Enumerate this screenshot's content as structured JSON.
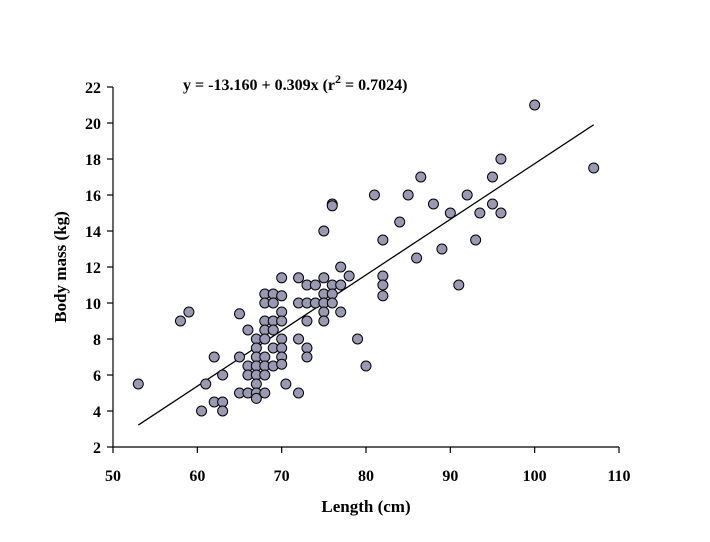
{
  "chart_data": {
    "type": "scatter",
    "title": "",
    "annotation": {
      "prefix": "y = -13.160 + 0.309x  (r",
      "superscript": "2",
      "suffix": " = 0.7024)"
    },
    "xlabel": "Length (cm)",
    "ylabel": "Body mass (kg)",
    "xlim": [
      50,
      110
    ],
    "ylim": [
      2,
      22
    ],
    "xticks": [
      50,
      60,
      70,
      80,
      90,
      100,
      110
    ],
    "yticks": [
      2,
      4,
      6,
      8,
      10,
      12,
      14,
      16,
      18,
      20,
      22
    ],
    "grid": false,
    "marker_fill": "#9999b3",
    "marker_edge": "#000000",
    "regression": {
      "intercept": -13.16,
      "slope": 0.309,
      "x_range": [
        53,
        107
      ],
      "r2": 0.7024
    },
    "points": [
      [
        53,
        5.5
      ],
      [
        58,
        9
      ],
      [
        59,
        9.5
      ],
      [
        60.5,
        4
      ],
      [
        61,
        5.5
      ],
      [
        62,
        7
      ],
      [
        62,
        4.5
      ],
      [
        63,
        6
      ],
      [
        63,
        4.5
      ],
      [
        63,
        4
      ],
      [
        65,
        9.4
      ],
      [
        65,
        7
      ],
      [
        65,
        5
      ],
      [
        66,
        8.5
      ],
      [
        66,
        6.5
      ],
      [
        66,
        6
      ],
      [
        66,
        5
      ],
      [
        67,
        8
      ],
      [
        67,
        7.5
      ],
      [
        67,
        7
      ],
      [
        67,
        6.5
      ],
      [
        67,
        6
      ],
      [
        67,
        5.5
      ],
      [
        67,
        5
      ],
      [
        67,
        4.7
      ],
      [
        68,
        10.5
      ],
      [
        68,
        10
      ],
      [
        68,
        9
      ],
      [
        68,
        8.5
      ],
      [
        68,
        8
      ],
      [
        68,
        7
      ],
      [
        68,
        6.5
      ],
      [
        68,
        6
      ],
      [
        68,
        5
      ],
      [
        69,
        10.5
      ],
      [
        69,
        10
      ],
      [
        69,
        9
      ],
      [
        69,
        8.5
      ],
      [
        69,
        7.5
      ],
      [
        69,
        6.5
      ],
      [
        70,
        11.4
      ],
      [
        70,
        10.4
      ],
      [
        70,
        9.5
      ],
      [
        70,
        9
      ],
      [
        70,
        8
      ],
      [
        70,
        7.5
      ],
      [
        70,
        7
      ],
      [
        70,
        6.6
      ],
      [
        70.5,
        5.5
      ],
      [
        72,
        11.4
      ],
      [
        72,
        10
      ],
      [
        72,
        8
      ],
      [
        72,
        5
      ],
      [
        73,
        11
      ],
      [
        73,
        10
      ],
      [
        73,
        9
      ],
      [
        73,
        7.5
      ],
      [
        73,
        7
      ],
      [
        74,
        11
      ],
      [
        74,
        10
      ],
      [
        75,
        14
      ],
      [
        75,
        11.4
      ],
      [
        75,
        10.5
      ],
      [
        75,
        10
      ],
      [
        75,
        9.5
      ],
      [
        75,
        9
      ],
      [
        76,
        15.5
      ],
      [
        76,
        15.4
      ],
      [
        76,
        11
      ],
      [
        76,
        10.5
      ],
      [
        76,
        10
      ],
      [
        77,
        12
      ],
      [
        77,
        11
      ],
      [
        77,
        9.5
      ],
      [
        78,
        11.5
      ],
      [
        79,
        8
      ],
      [
        80,
        6.5
      ],
      [
        81,
        16
      ],
      [
        82,
        13.5
      ],
      [
        82,
        11.5
      ],
      [
        82,
        11
      ],
      [
        82,
        10.4
      ],
      [
        84,
        14.5
      ],
      [
        85,
        16
      ],
      [
        86,
        12.5
      ],
      [
        86.5,
        17
      ],
      [
        88,
        15.5
      ],
      [
        89,
        13
      ],
      [
        90,
        15
      ],
      [
        91,
        11
      ],
      [
        92,
        16
      ],
      [
        93,
        13.5
      ],
      [
        93.5,
        15
      ],
      [
        95,
        15.5
      ],
      [
        95,
        17
      ],
      [
        96,
        18
      ],
      [
        96,
        15
      ],
      [
        100,
        21
      ],
      [
        107,
        17.5
      ]
    ]
  }
}
